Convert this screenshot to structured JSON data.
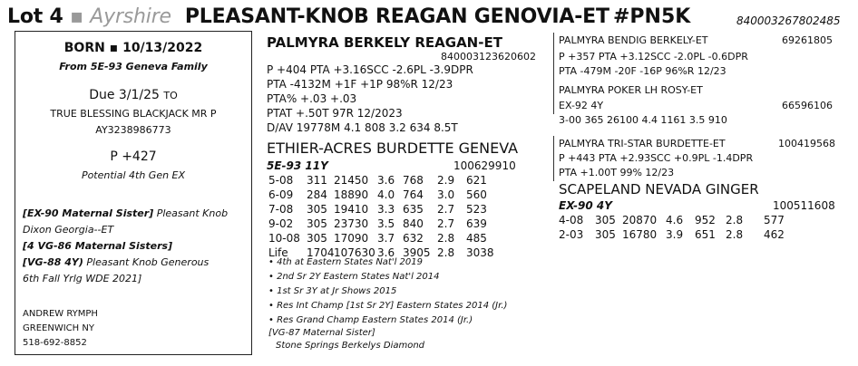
{
  "header": {
    "lot": "Lot 4",
    "separator": "▪",
    "breed": "Ayrshire",
    "cow_name": "PLEASANT-KNOB REAGAN GENOVIA-ET",
    "code": "#PN5K",
    "id": "840003267802485"
  },
  "left": {
    "born": "BORN ▪ 10/13/2022",
    "family": "From 5E-93 Geneva Family",
    "due_label": "Due 3/1/25",
    "due_to": "TO",
    "service_sire": "TRUE BLESSING BLACKJACK MR P",
    "service_sire_id": "AY3238986773",
    "p_value": "P +427",
    "potential": "Potential 4th Gen EX",
    "notes": [
      {
        "bold": "[EX-90 Maternal Sister]",
        "text": " Pleasant Knob"
      },
      {
        "bold": "",
        "text": "Dixon Georgia--ET"
      },
      {
        "bold": "[4 VG-86 Maternal Sisters]",
        "text": ""
      },
      {
        "bold": "[VG-88 4Y)",
        "text": " Pleasant Knob Generous"
      },
      {
        "bold": "",
        "text": "6th Fall Yrlg WDE 2021]"
      }
    ],
    "consignor": [
      "ANDREW RYMPH",
      "GREENWICH NY",
      "518-692-8852"
    ]
  },
  "sire": {
    "name": "PALMYRA BERKELY REAGAN-ET",
    "id": "840003123620602",
    "lines": [
      "P +404  PTA  +3.16SCC  -2.6PL  -3.9DPR",
      "PTA  -4132M  +1F  +1P  98%R  12/23",
      "PTA%  +.03  +.03",
      "PTAT  +.50T  97R  12/2023",
      "D/AV  19778M  4.1  808  3.2  634  8.5T"
    ]
  },
  "dam": {
    "name": "ETHIER-ACRES BURDETTE GENEVA",
    "class": "5E-93 11Y",
    "id": "100629910",
    "records": [
      [
        "5-08",
        "311",
        "21450",
        "3.6",
        "768",
        "2.9",
        "621"
      ],
      [
        "6-09",
        "284",
        "18890",
        "4.0",
        "764",
        "3.0",
        "560"
      ],
      [
        "7-08",
        "305",
        "19410",
        "3.3",
        "635",
        "2.7",
        "523"
      ],
      [
        "9-02",
        "305",
        "23730",
        "3.5",
        "840",
        "2.7",
        "639"
      ],
      [
        "10-08",
        "305",
        "17090",
        "3.7",
        "632",
        "2.8",
        "485"
      ],
      [
        "Life",
        "1704",
        "107630",
        "3.6",
        "3905",
        "2.8",
        "3038"
      ]
    ],
    "bullets": [
      "• 4th at Eastern States Nat'l 2019",
      "• 2nd Sr 2Y Eastern States Nat'l 2014",
      "• 1st Sr 3Y at Jr Shows 2015",
      "• Res Int Champ [1st Sr 2Y] Eastern States 2014 (Jr.)",
      "• Res Grand Champ Eastern States 2014 (Jr.)",
      "[VG-87 Maternal Sister]",
      "Stone Springs Berkelys Diamond"
    ]
  },
  "right": {
    "sire_sire": {
      "name": "PALMYRA BENDIG BERKELY-ET",
      "id": "69261805",
      "lines": [
        "P +357  PTA  +3.12SCC  -2.0PL   -0.6DPR",
        "PTA  -479M  -20F  -16P  96%R  12/23"
      ]
    },
    "sire_dam": {
      "name": "PALMYRA POKER LH ROSY-ET",
      "class": "EX-92 4Y",
      "id": "66596106",
      "record": "3-00  365  26100  4.4  1161  3.5  910"
    },
    "dam_sire": {
      "name": "PALMYRA TRI-STAR BURDETTE-ET",
      "id": "100419568",
      "lines": [
        "P +443 PTA +2.93SCC  +0.9PL  -1.4DPR",
        "PTA  +1.00T  99%  12/23"
      ]
    },
    "dam_dam": {
      "name": "SCAPELAND NEVADA GINGER",
      "class": "EX-90 4Y",
      "id": "100511608",
      "records": [
        [
          "4-08",
          "305",
          "20870",
          "4.6",
          "952",
          "2.8",
          "577"
        ],
        [
          "2-03",
          "305",
          "16780",
          "3.9",
          "651",
          "2.8",
          "462"
        ]
      ]
    }
  }
}
